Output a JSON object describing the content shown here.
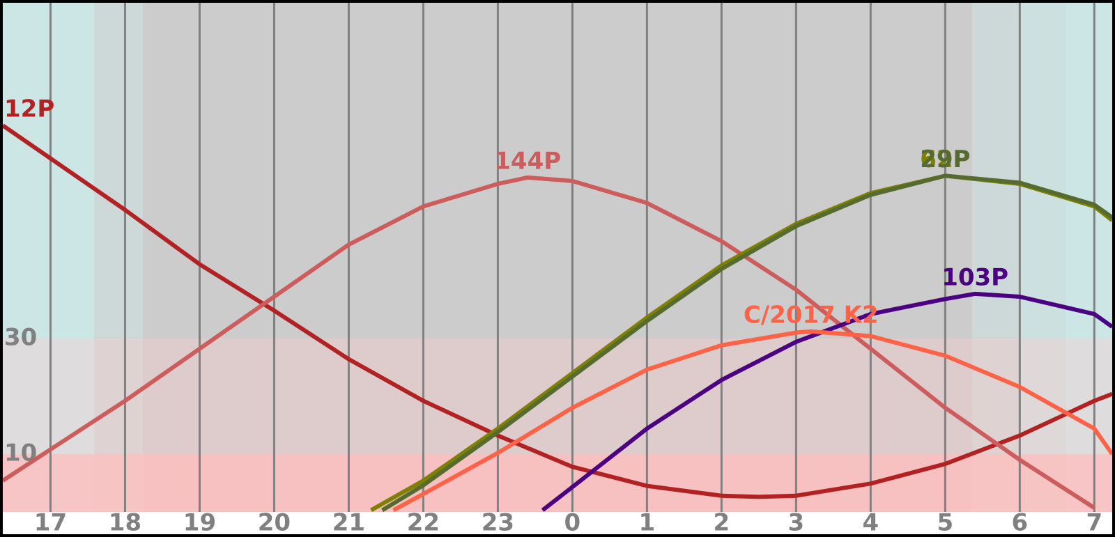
{
  "chart_data": {
    "type": "line",
    "xlim": [
      16.36,
      31.24
    ],
    "ylim": [
      0,
      88
    ],
    "xticks": [
      17,
      18,
      19,
      20,
      21,
      22,
      23,
      {
        "value": 24,
        "label": "0"
      },
      {
        "value": 25,
        "label": "1"
      },
      {
        "value": 26,
        "label": "2"
      },
      {
        "value": 27,
        "label": "3"
      },
      {
        "value": 28,
        "label": "4"
      },
      {
        "value": 29,
        "label": "5"
      },
      {
        "value": 30,
        "label": "6"
      },
      {
        "value": 31,
        "label": "7"
      }
    ],
    "yticks": [
      10,
      30
    ],
    "grid": true,
    "series": [
      {
        "name": "12P",
        "color": "#b22222",
        "x": [
          16.36,
          18,
          19,
          20,
          21,
          22,
          23,
          24,
          25,
          26,
          26.5,
          27,
          28,
          29,
          30,
          31,
          31.24
        ],
        "values": [
          66.8,
          52.2,
          42.8,
          34.8,
          26.4,
          19.2,
          13.2,
          7.8,
          4.5,
          2.8,
          2.6,
          2.8,
          4.9,
          8.3,
          13.2,
          19.2,
          20.4
        ]
      },
      {
        "name": "144P",
        "color": "#cd5c5c",
        "x": [
          16.36,
          17,
          18,
          19,
          20,
          21,
          22,
          23,
          23.4,
          24,
          25,
          26,
          27,
          28,
          29,
          30,
          31
        ],
        "values": [
          5.4,
          10.8,
          19.2,
          28.2,
          37.2,
          46.2,
          52.8,
          56.7,
          57.8,
          57.2,
          53.4,
          46.8,
          38.4,
          28.2,
          18.0,
          9.0,
          0.7
        ]
      },
      {
        "name": "62P",
        "color": "#808000",
        "x": [
          21.3,
          22,
          23,
          24,
          25,
          26,
          27,
          28,
          29,
          30,
          31,
          31.24
        ],
        "values": [
          0.3,
          5.4,
          14.4,
          24.0,
          33.6,
          42.6,
          49.8,
          55.1,
          58.1,
          56.7,
          52.8,
          50.4
        ]
      },
      {
        "name": "29P",
        "color": "#556b2f",
        "x": [
          21.45,
          22,
          23,
          24,
          25,
          26,
          27,
          28,
          29,
          30,
          31,
          31.24
        ],
        "values": [
          0.3,
          4.6,
          13.8,
          23.4,
          33.0,
          42.0,
          49.4,
          54.8,
          58.1,
          56.9,
          53.1,
          50.9
        ]
      },
      {
        "name": "103P",
        "color": "#4b0082",
        "x": [
          23.6,
          24,
          25,
          26,
          27,
          28,
          29,
          29.4,
          30,
          31,
          31.24
        ],
        "values": [
          0.3,
          4.3,
          14.4,
          22.8,
          29.4,
          34.2,
          36.8,
          37.7,
          37.2,
          34.2,
          32.0
        ]
      },
      {
        "name": "C/2017 K2",
        "color": "#ff6347",
        "x": [
          21.6,
          22,
          23,
          24,
          25,
          26,
          27,
          27.2,
          28,
          29,
          30,
          31,
          31.24
        ],
        "values": [
          0.3,
          3.1,
          10.2,
          18.0,
          24.6,
          28.8,
          31.0,
          31.2,
          30.4,
          27.0,
          21.6,
          14.4,
          10.0
        ]
      }
    ]
  }
}
